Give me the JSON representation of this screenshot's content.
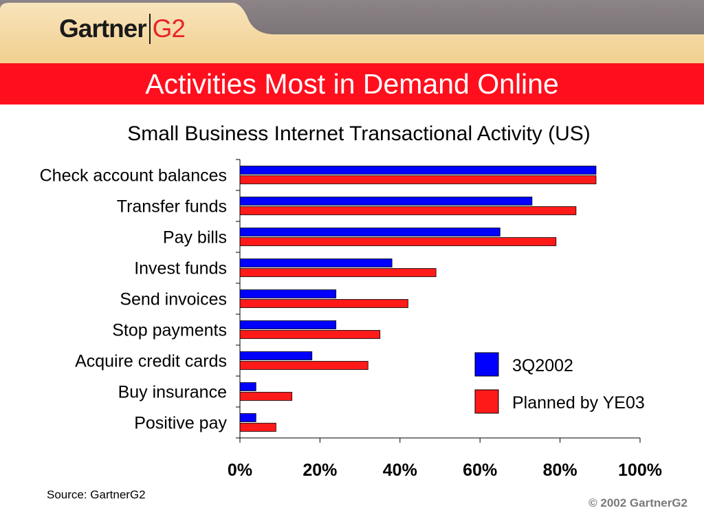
{
  "header": {
    "logo_left": "Gartner",
    "logo_right": "G2",
    "slide_title": "Activities Most in Demand Online"
  },
  "colors": {
    "title_bar": "#ff0f1e",
    "series_3q2002": "#0000ff",
    "series_planned": "#ff1a1a"
  },
  "chart_data": {
    "type": "bar",
    "orientation": "horizontal",
    "title": "Small Business Internet Transactional Activity (US)",
    "categories": [
      "Check account balances",
      "Transfer funds",
      "Pay bills",
      "Invest funds",
      "Send invoices",
      "Stop payments",
      "Acquire credit cards",
      "Buy insurance",
      "Positive pay"
    ],
    "series": [
      {
        "name": "3Q2002",
        "values": [
          89,
          73,
          65,
          38,
          24,
          24,
          18,
          4,
          4
        ]
      },
      {
        "name": "Planned by YE03",
        "values": [
          89,
          84,
          79,
          49,
          42,
          35,
          32,
          13,
          9
        ]
      }
    ],
    "xlim": [
      0,
      100
    ],
    "x_ticks": [
      "0%",
      "20%",
      "40%",
      "60%",
      "80%",
      "100%"
    ],
    "legend_position": "bottom-right",
    "grid": false
  },
  "footer": {
    "source": "Source: GartnerG2",
    "copyright": "© 2002 GartnerG2"
  }
}
